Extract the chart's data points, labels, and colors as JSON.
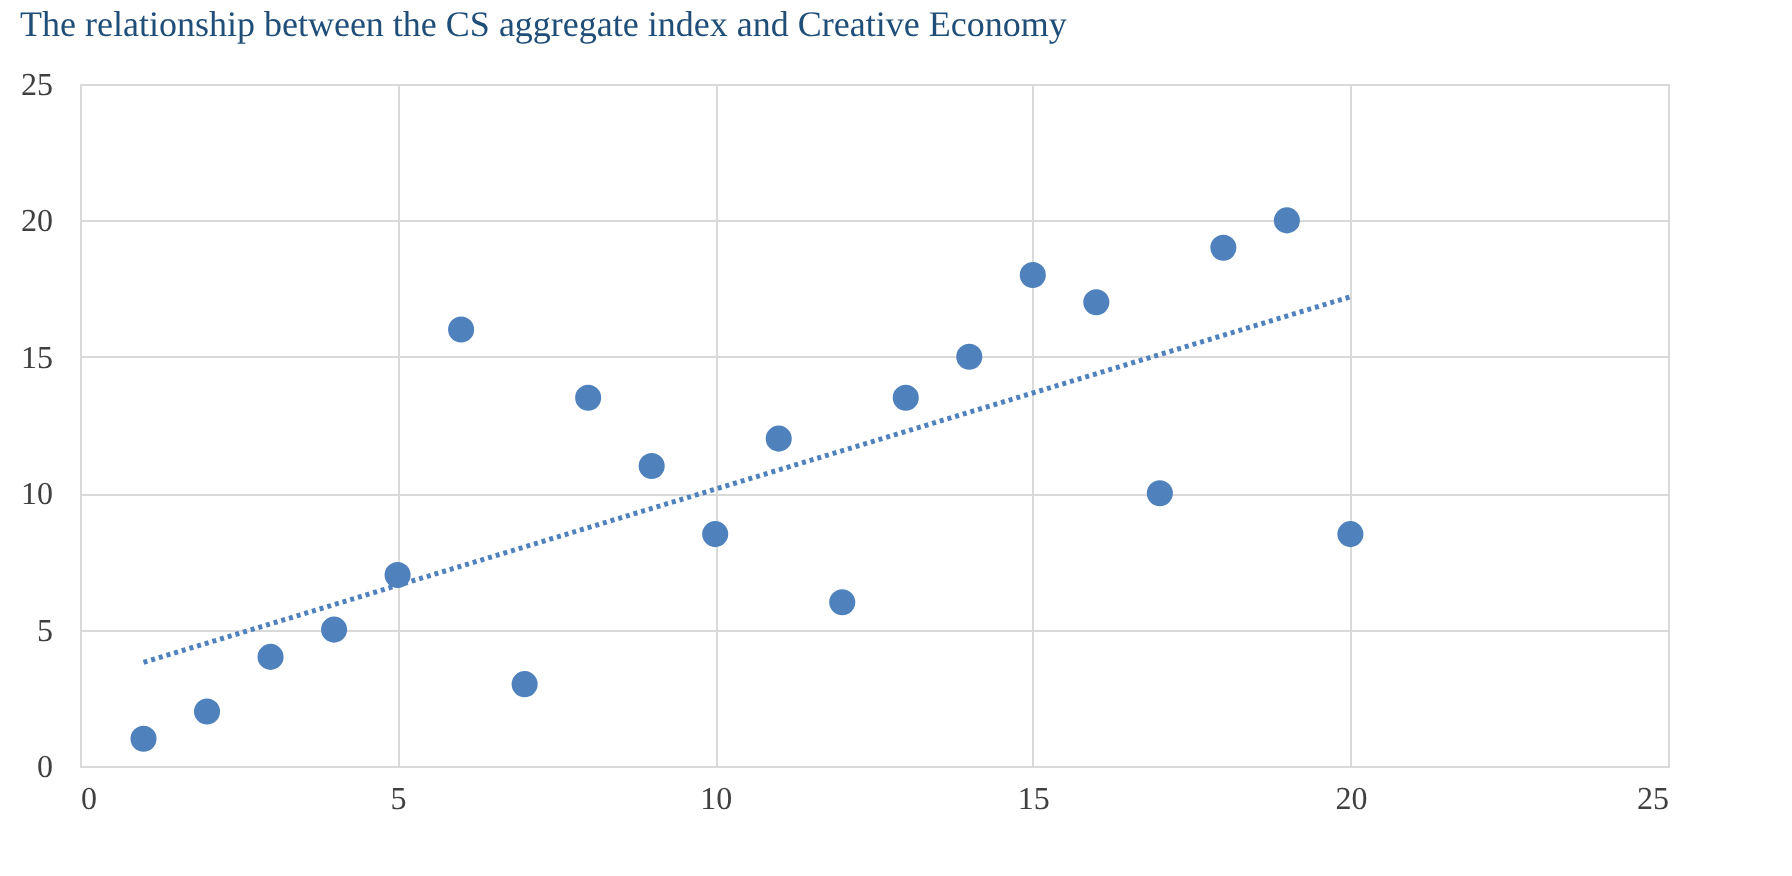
{
  "chart_data": {
    "type": "scatter",
    "title": "The relationship between the CS aggregate index and Creative Economy",
    "series": [
      {
        "color": "#4f81bd",
        "marker": "circle",
        "x": [
          1,
          2,
          3,
          4,
          5,
          6,
          7,
          8,
          9,
          10,
          11,
          12,
          13,
          14,
          15,
          16,
          17,
          18,
          19,
          20
        ],
        "values": [
          1,
          2,
          4,
          5,
          7,
          16,
          3,
          13.5,
          11,
          8.5,
          12,
          6,
          13.5,
          15,
          18,
          17,
          10,
          19,
          20,
          8.5
        ]
      },
      {
        "type": "line",
        "color": "#4f81bd",
        "line_style": "dotted",
        "marker": "none",
        "x": [
          1,
          20
        ],
        "values": [
          3.8,
          17.2
        ]
      }
    ],
    "xlim": [
      0,
      25
    ],
    "xticks": [
      0,
      5,
      10,
      15,
      20,
      25
    ],
    "ylim": [
      0,
      25
    ],
    "yticks": [
      0,
      5,
      10,
      15,
      20,
      25
    ],
    "grid": true
  }
}
